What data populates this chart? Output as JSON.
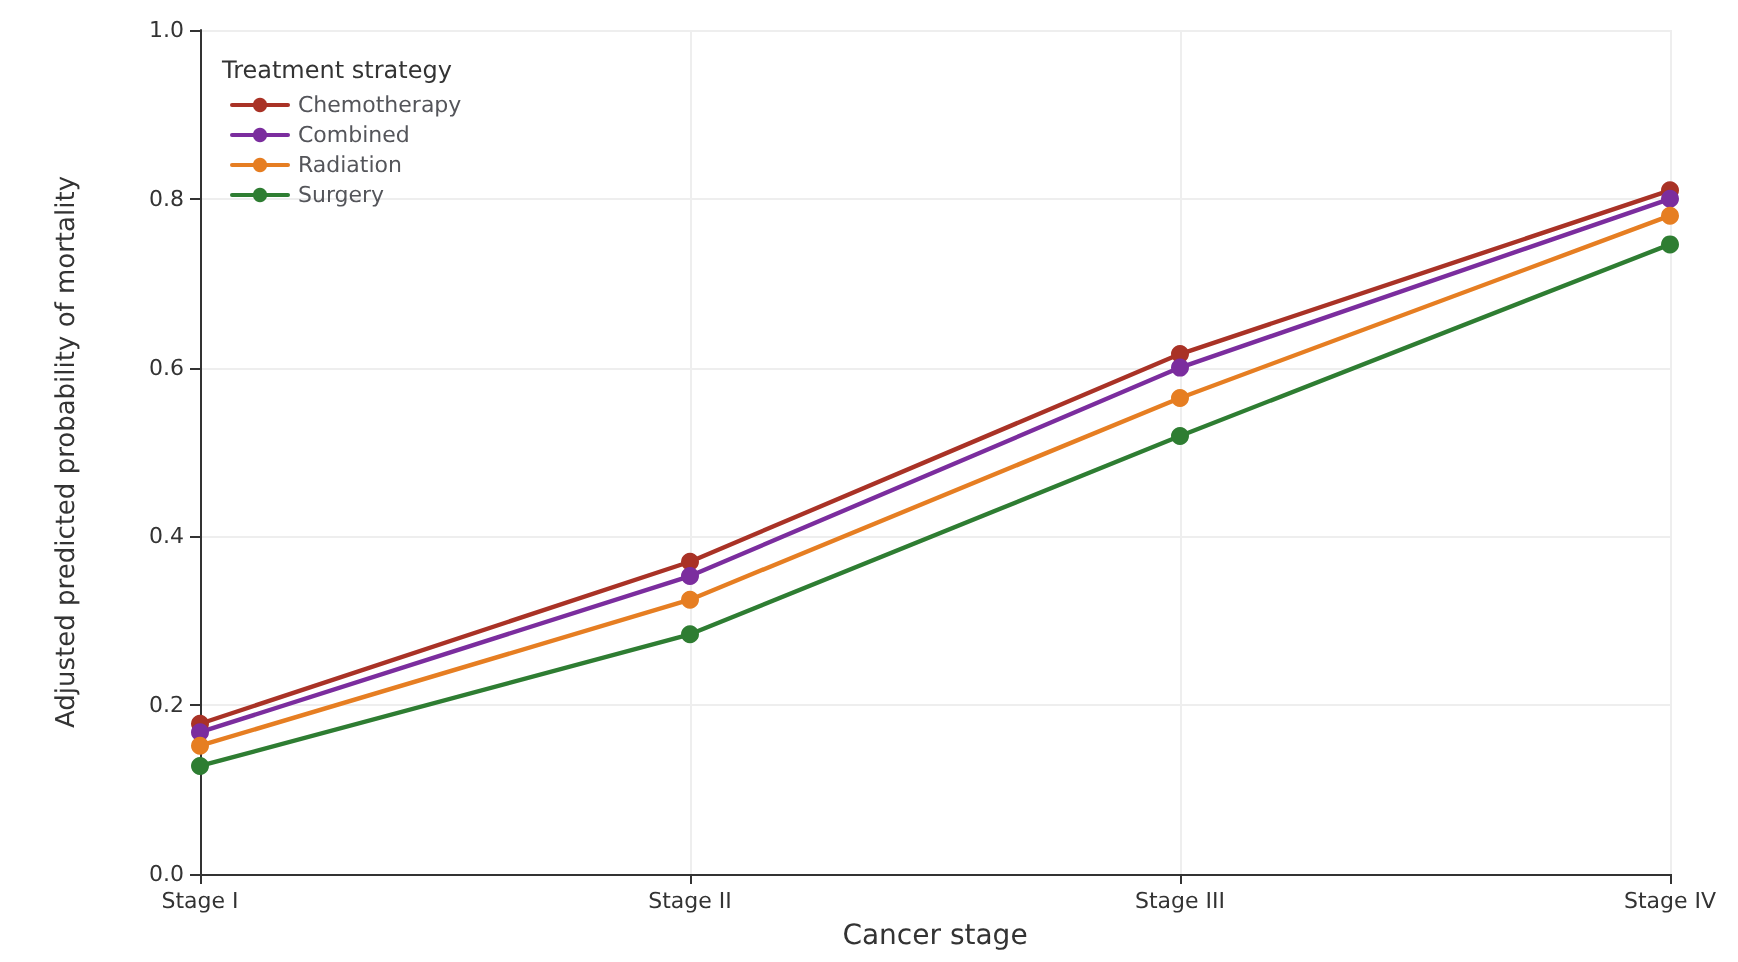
{
  "chart_data": {
    "type": "line",
    "xlabel": "Cancer stage",
    "ylabel": "Adjusted predicted probability of mortality",
    "legend_title": "Treatment strategy",
    "categories": [
      "Stage I",
      "Stage II",
      "Stage III",
      "Stage IV"
    ],
    "series": [
      {
        "name": "Chemotherapy",
        "color": "#a93226",
        "values": [
          0.178,
          0.37,
          0.616,
          0.81
        ]
      },
      {
        "name": "Combined",
        "color": "#7b2d9e",
        "values": [
          0.168,
          0.353,
          0.6,
          0.8
        ]
      },
      {
        "name": "Radiation",
        "color": "#e67e22",
        "values": [
          0.152,
          0.325,
          0.564,
          0.78
        ]
      },
      {
        "name": "Surgery",
        "color": "#2e7d32",
        "values": [
          0.128,
          0.284,
          0.519,
          0.746
        ]
      }
    ],
    "ylim": [
      0,
      1
    ],
    "yticks": [
      {
        "value": 0,
        "label": "0.0"
      },
      {
        "value": 0.2,
        "label": "0.2"
      },
      {
        "value": 0.4,
        "label": "0.4"
      },
      {
        "value": 0.6,
        "label": "0.6"
      },
      {
        "value": 0.8,
        "label": "0.8"
      },
      {
        "value": 1,
        "label": "1.0"
      }
    ],
    "grid": true,
    "legend": "top left",
    "marker": "circle",
    "line_style": "solid"
  }
}
